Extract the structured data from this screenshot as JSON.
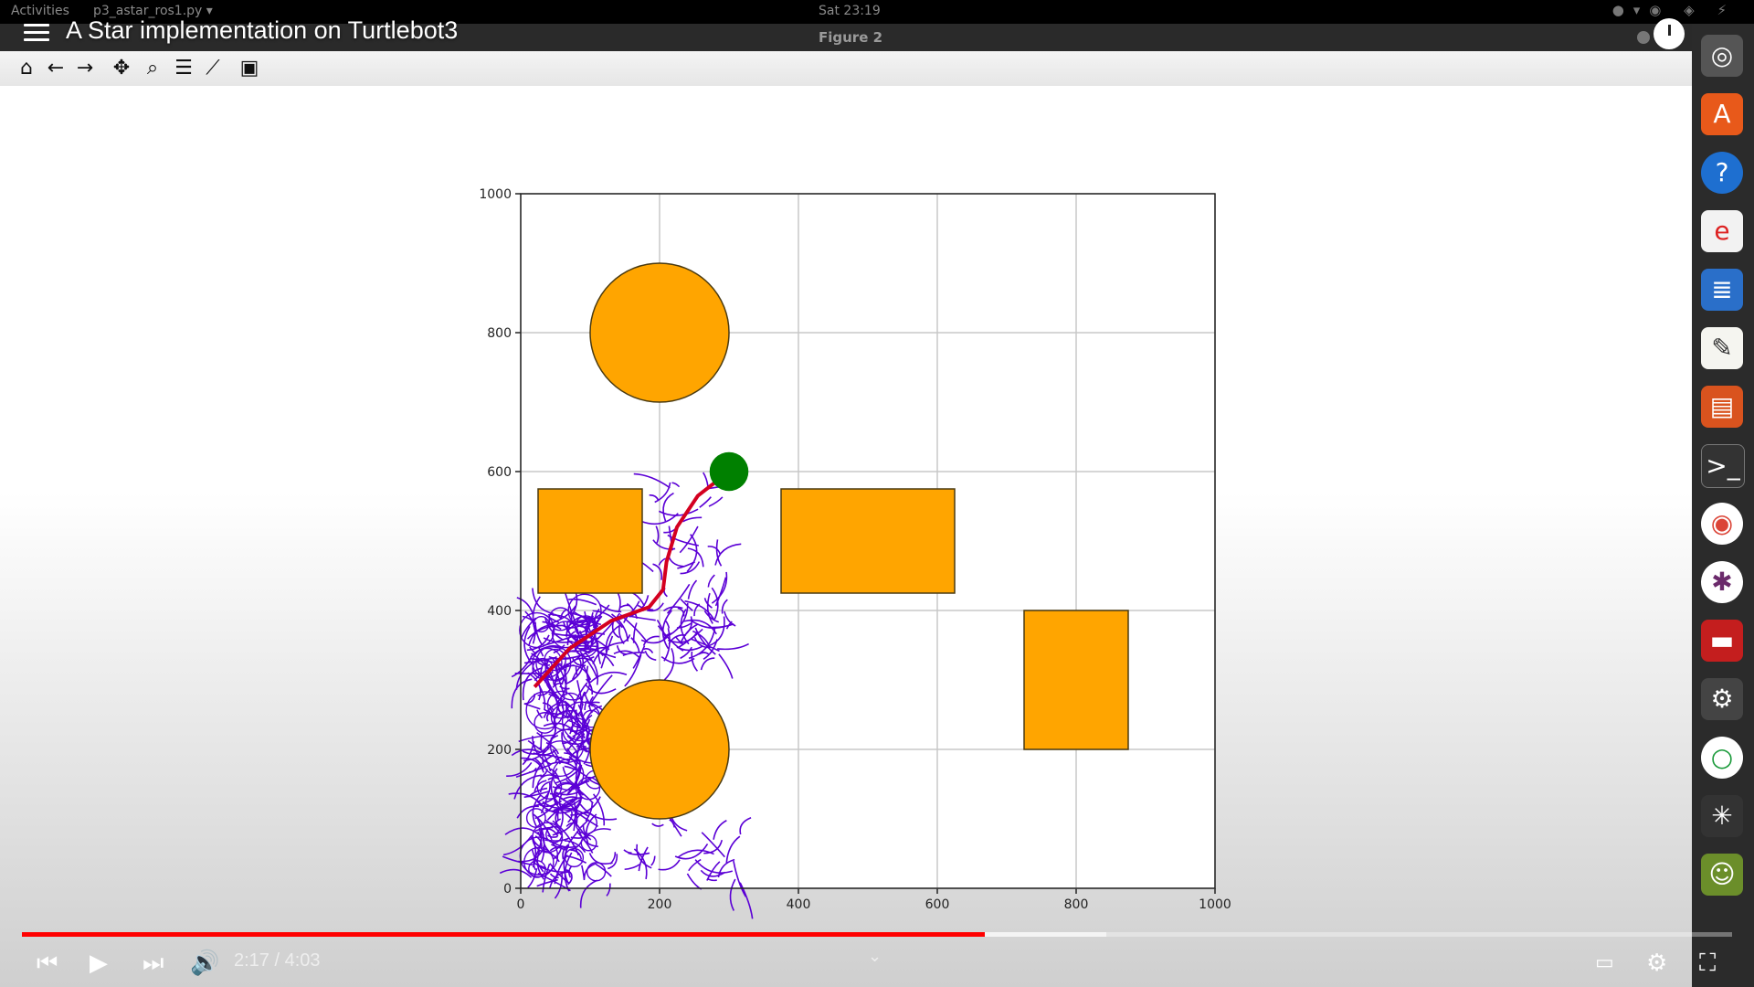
{
  "system_bar": {
    "activities": "Activities",
    "app_menu": "p3_astar_ros1.py ▾",
    "clock": "Sat 23:19"
  },
  "window": {
    "title": "Figure 2"
  },
  "video": {
    "title": "A Star implementation on Turtlebot3",
    "time": "2:17 / 4:03",
    "progress": 0.563,
    "buffered": 0.634
  },
  "toolbar": {
    "buttons": [
      "home",
      "back",
      "forward",
      "pan",
      "zoom",
      "configure-subplots",
      "edit-axis",
      "save"
    ]
  },
  "chart_data": {
    "type": "scatter",
    "title": "",
    "xlabel": "",
    "ylabel": "",
    "xlim": [
      0,
      1000
    ],
    "ylim": [
      0,
      1000
    ],
    "x_ticks": [
      "0",
      "200",
      "400",
      "600",
      "800",
      "1000"
    ],
    "y_ticks": [
      "0",
      "200",
      "400",
      "600",
      "800",
      "1000"
    ],
    "grid": true,
    "obstacle_color": "#ffa500",
    "goal_color": "#008000",
    "path_color": "#d40020",
    "exploration_color": "#5b00d6",
    "obstacles": [
      {
        "shape": "circle",
        "cx": 200,
        "cy": 800,
        "r": 100
      },
      {
        "shape": "circle",
        "cx": 200,
        "cy": 200,
        "r": 100
      },
      {
        "shape": "rect",
        "x0": 25,
        "y0": 425,
        "x1": 175,
        "y1": 575
      },
      {
        "shape": "rect",
        "x0": 375,
        "y0": 425,
        "x1": 625,
        "y1": 575
      },
      {
        "shape": "rect",
        "x0": 725,
        "y0": 200,
        "x1": 875,
        "y1": 400
      }
    ],
    "goal": {
      "x": 300,
      "y": 600,
      "r": 28
    },
    "path": [
      [
        20,
        290
      ],
      [
        70,
        345
      ],
      [
        130,
        385
      ],
      [
        185,
        405
      ],
      [
        205,
        430
      ],
      [
        210,
        470
      ],
      [
        225,
        520
      ],
      [
        255,
        565
      ],
      [
        300,
        600
      ]
    ]
  }
}
